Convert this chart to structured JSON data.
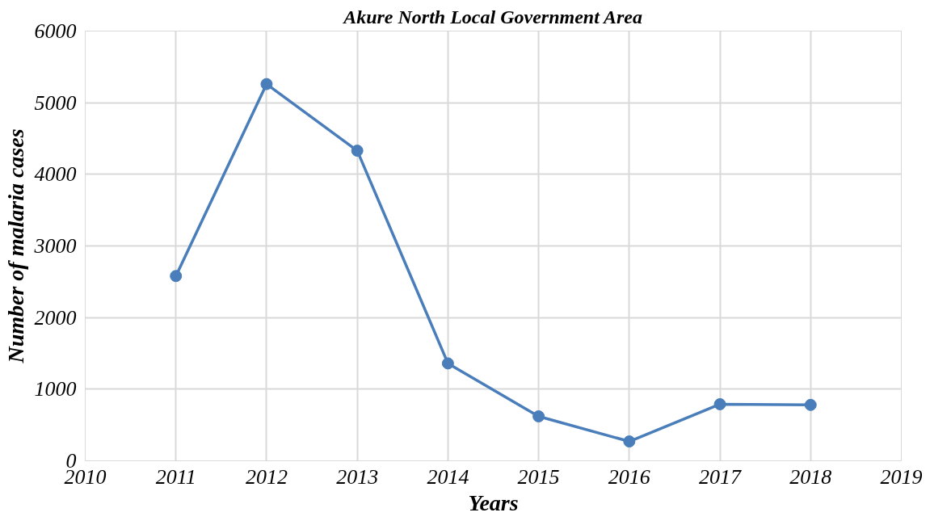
{
  "chart_data": {
    "type": "line",
    "title": "Akure North Local Government Area",
    "xlabel": "Years",
    "ylabel": "Number of malaria cases",
    "x": [
      2011,
      2012,
      2013,
      2014,
      2015,
      2016,
      2017,
      2018
    ],
    "series": [
      {
        "color": "#4a7ebb",
        "values": [
          2580,
          5260,
          4330,
          1360,
          620,
          270,
          790,
          780
        ]
      }
    ],
    "xlim": [
      2010,
      2019
    ],
    "xticks": [
      2010,
      2011,
      2012,
      2013,
      2014,
      2015,
      2016,
      2017,
      2018,
      2019
    ],
    "ylim": [
      0,
      6000
    ],
    "yticks": [
      0,
      1000,
      2000,
      3000,
      4000,
      5000,
      6000
    ],
    "grid": true,
    "marker": "circle",
    "line_style": "solid"
  }
}
